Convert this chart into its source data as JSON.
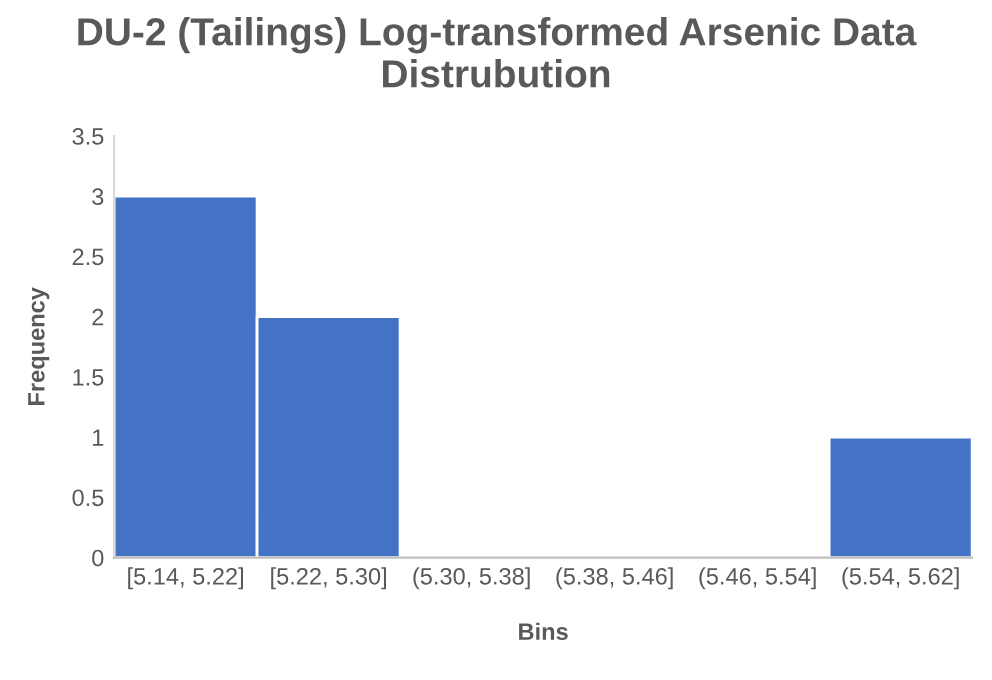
{
  "chart_data": {
    "type": "bar",
    "title": "DU-2 (Tailings) Log-transformed Arsenic Data Distrubution",
    "xlabel": "Bins",
    "ylabel": "Frequency",
    "categories": [
      "[5.14, 5.22]",
      "[5.22, 5.30]",
      "(5.30, 5.38]",
      "(5.38, 5.46]",
      "(5.46, 5.54]",
      "(5.54, 5.62]"
    ],
    "values": [
      3,
      2,
      0,
      0,
      0,
      1
    ],
    "color": "#4472c4",
    "ylim": [
      0,
      3.5
    ],
    "yticks": [
      0,
      0.5,
      1,
      1.5,
      2,
      2.5,
      3,
      3.5
    ],
    "grid": false
  }
}
